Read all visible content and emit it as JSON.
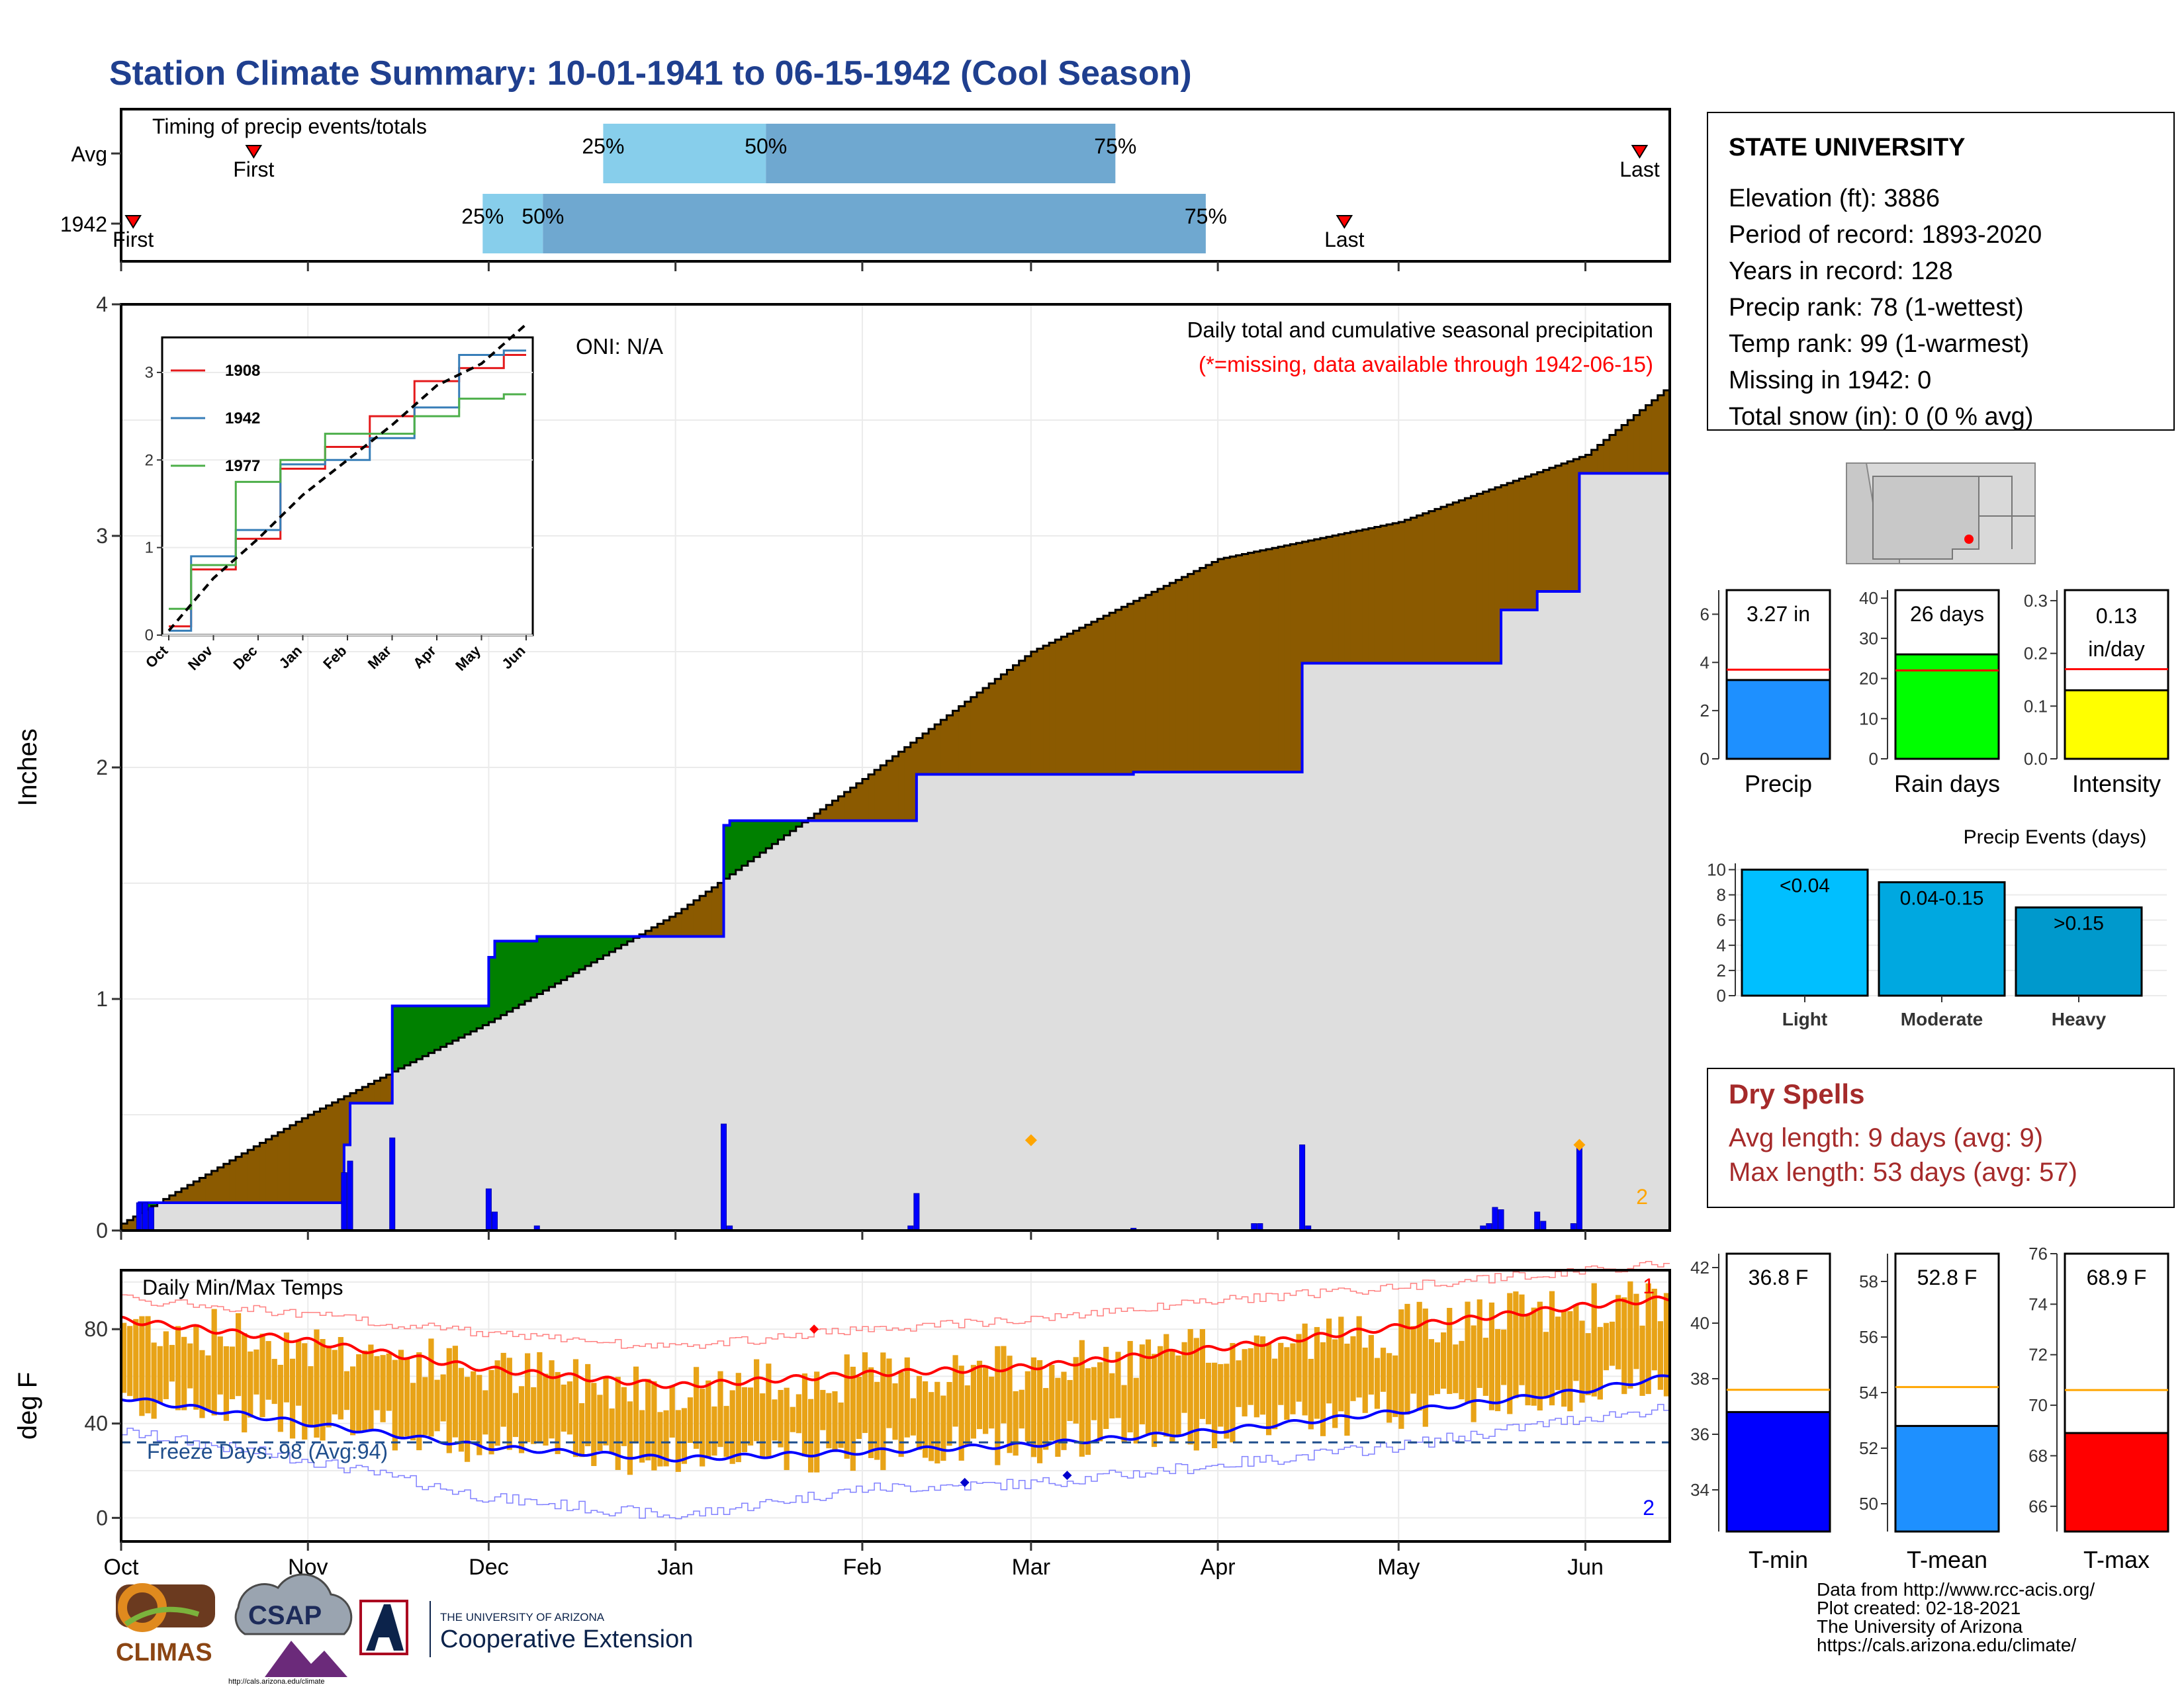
{
  "page_title": "Station Climate Summary: 10-01-1941 to 06-15-1942 (Cool Season)",
  "timing_panel": {
    "title": "Timing of precip events/totals",
    "rows": [
      {
        "label": "Avg",
        "first": "First",
        "last": "Last",
        "first_date": "1941-10-23",
        "q25": "25%",
        "q50": "50%",
        "q75": "75%",
        "q25_date": "1941-12-20",
        "q50_date": "1942-01-16",
        "q75_date": "1942-03-15",
        "last_date": "1942-06-10"
      },
      {
        "label": "1942",
        "first": "First",
        "last": "Last",
        "first_date": "1941-10-03",
        "q25": "25%",
        "q50": "50%",
        "q75": "75%",
        "q25_date": "1941-11-30",
        "q50_date": "1941-12-10",
        "q75_date": "1942-03-30",
        "last_date": "1942-04-22"
      }
    ]
  },
  "station_info": {
    "name": "STATE UNIVERSITY",
    "lines": [
      "Elevation (ft): 3886",
      "Period of record: 1893-2020",
      "Years in record: 128",
      "Precip rank: 78 (1-wettest)",
      "Temp rank: 99 (1-warmest)",
      "Missing in 1942: 0",
      "Total snow (in): 0 (0 % avg)"
    ]
  },
  "precip_panel": {
    "ylabel": "Inches",
    "annotation": "Daily total and cumulative seasonal precipitation",
    "missing_note": "(*=missing, data available through 1942-06-15)",
    "oni": "ONI: N/A",
    "corner_count": "2",
    "colors": {
      "observed": "#0000ff",
      "above": "#008000",
      "below": "#8b5a00",
      "fill": "#dedede",
      "marker": "#ffa500"
    }
  },
  "temp_panel": {
    "ylabel": "deg F",
    "title": "Daily Min/Max Temps",
    "freeze_days": "Freeze Days: 98 (Avg:94)",
    "record_high_count": "1",
    "record_low_count": "2",
    "colors": {
      "bars": "#e8a317",
      "avg_max": "#ff0000",
      "avg_min": "#0000ff",
      "freeze": "#1f4e8c"
    }
  },
  "x_months": [
    "Oct",
    "Nov",
    "Dec",
    "Jan",
    "Feb",
    "Mar",
    "Apr",
    "May",
    "Jun"
  ],
  "inset_months": [
    "Oct",
    "Nov",
    "Dec",
    "Jan",
    "Feb",
    "Mar",
    "Apr",
    "May",
    "Jun"
  ],
  "mini_bars": [
    {
      "label": "Precip",
      "value_text": "3.27 in",
      "value": 3.27,
      "avg": 3.7,
      "color": "#1e90ff",
      "ylim": [
        0,
        7
      ],
      "ticks": [
        0,
        2,
        4,
        6
      ]
    },
    {
      "label": "Rain days",
      "value_text": "26 days",
      "value": 26,
      "avg": 22,
      "color": "#00ff00",
      "ylim": [
        0,
        42
      ],
      "ticks": [
        0,
        10,
        20,
        30,
        40
      ]
    },
    {
      "label": "Intensity",
      "value_text": "0.13 in/day",
      "value_line1": "0.13",
      "value_line2": "in/day",
      "value": 0.13,
      "avg": 0.17,
      "color": "#ffff00",
      "ylim": [
        0,
        0.32
      ],
      "ticks": [
        "0.0",
        "0.1",
        "0.2",
        "0.3"
      ]
    }
  ],
  "precip_events": {
    "title": "Precip Events (days)",
    "ticks": [
      0,
      2,
      4,
      6,
      8,
      10
    ],
    "bars": [
      {
        "category": "Light",
        "label": "<0.04",
        "value": 10,
        "color": "#00bfff"
      },
      {
        "category": "Moderate",
        "label": "0.04-0.15",
        "value": 9,
        "color": "#00a8e0"
      },
      {
        "category": "Heavy",
        "label": ">0.15",
        "value": 7,
        "color": "#0099cc"
      }
    ]
  },
  "dry_spells": {
    "title": "Dry Spells",
    "avg": "Avg length: 9 days (avg: 9)",
    "max": "Max length: 53 days (avg: 57)"
  },
  "temp_bars": [
    {
      "label": "T-min",
      "value_text": "36.8 F",
      "value": 36.8,
      "avg": 37.6,
      "color": "#0000ff",
      "ylim": [
        32.5,
        42.5
      ],
      "ticks": [
        34,
        36,
        38,
        40,
        42
      ]
    },
    {
      "label": "T-mean",
      "value_text": "52.8 F",
      "value": 52.8,
      "avg": 54.2,
      "color": "#1e90ff",
      "ylim": [
        49,
        59
      ],
      "ticks": [
        50,
        52,
        54,
        56,
        58
      ]
    },
    {
      "label": "T-max",
      "value_text": "68.9 F",
      "value": 68.9,
      "avg": 70.6,
      "color": "#ff0000",
      "ylim": [
        65,
        76
      ],
      "ticks": [
        66,
        68,
        70,
        72,
        74,
        76
      ]
    }
  ],
  "footer": {
    "lines": [
      "Data from http://www.rcc-acis.org/",
      "Plot created: 02-18-2021",
      "The University of Arizona",
      "https://cals.arizona.edu/climate/"
    ]
  },
  "logos": {
    "climas": "CLIMAS",
    "csap": "CSAP",
    "csap_url": "http://cals.arizona.edu/climate",
    "ua_small": "THE UNIVERSITY OF ARIZONA",
    "ua_large": "Cooperative Extension"
  },
  "chart_data": [
    {
      "type": "area",
      "title": "Daily total and cumulative seasonal precipitation",
      "ylabel": "Inches",
      "ylim": [
        0,
        4
      ],
      "x_range": [
        "1941-10-01",
        "1942-06-15"
      ],
      "daily_precip": [
        [
          "1941-10-04",
          0.12
        ],
        [
          "1941-10-05",
          0.12
        ],
        [
          "1941-10-06",
          0.1
        ],
        [
          "1941-11-07",
          0.25
        ],
        [
          "1941-11-08",
          0.3
        ],
        [
          "1941-11-15",
          0.4
        ],
        [
          "1941-12-01",
          0.18
        ],
        [
          "1941-12-02",
          0.08
        ],
        [
          "1941-12-09",
          0.02
        ],
        [
          "1942-01-09",
          0.46
        ],
        [
          "1942-01-10",
          0.02
        ],
        [
          "1942-02-09",
          0.02
        ],
        [
          "1942-02-10",
          0.16
        ],
        [
          "1942-03-18",
          0.01
        ],
        [
          "1942-04-07",
          0.03
        ],
        [
          "1942-04-08",
          0.03
        ],
        [
          "1942-04-15",
          0.37
        ],
        [
          "1942-04-16",
          0.02
        ],
        [
          "1942-05-15",
          0.02
        ],
        [
          "1942-05-16",
          0.03
        ],
        [
          "1942-05-17",
          0.1
        ],
        [
          "1942-05-18",
          0.09
        ],
        [
          "1942-05-24",
          0.08
        ],
        [
          "1942-05-25",
          0.04
        ],
        [
          "1942-05-30",
          0.03
        ],
        [
          "1942-05-31",
          0.37
        ]
      ],
      "cumulative_observed": [
        [
          "1941-10-01",
          0.0
        ],
        [
          "1941-10-04",
          0.12
        ],
        [
          "1941-11-07",
          0.37
        ],
        [
          "1941-11-08",
          0.55
        ],
        [
          "1941-11-15",
          0.97
        ],
        [
          "1941-12-01",
          1.18
        ],
        [
          "1941-12-02",
          1.25
        ],
        [
          "1941-12-09",
          1.27
        ],
        [
          "1942-01-09",
          1.75
        ],
        [
          "1942-01-10",
          1.77
        ],
        [
          "1942-02-10",
          1.97
        ],
        [
          "1942-03-18",
          1.98
        ],
        [
          "1942-04-15",
          2.45
        ],
        [
          "1942-05-15",
          2.45
        ],
        [
          "1942-05-18",
          2.68
        ],
        [
          "1942-05-24",
          2.76
        ],
        [
          "1942-05-31",
          3.27
        ],
        [
          "1942-06-15",
          3.27
        ]
      ],
      "cumulative_average": [
        [
          "1941-10-01",
          0.03
        ],
        [
          "1941-11-01",
          0.5
        ],
        [
          "1941-12-01",
          0.9
        ],
        [
          "1942-01-01",
          1.37
        ],
        [
          "1942-02-01",
          1.95
        ],
        [
          "1942-03-01",
          2.5
        ],
        [
          "1942-04-01",
          2.9
        ],
        [
          "1942-05-01",
          3.06
        ],
        [
          "1942-06-01",
          3.35
        ],
        [
          "1942-06-15",
          3.65
        ]
      ],
      "extreme_markers": [
        [
          "1942-03-01",
          0.39
        ],
        [
          "1942-05-31",
          0.37
        ]
      ]
    },
    {
      "type": "line",
      "title": "",
      "ylim": [
        0,
        3.4
      ],
      "x_labels": [
        "Oct",
        "Nov",
        "Dec",
        "Jan",
        "Feb",
        "Mar",
        "Apr",
        "May",
        "Jun"
      ],
      "series": [
        {
          "name": "1908",
          "color": "#e41a1c",
          "values": [
            0.1,
            0.75,
            1.1,
            1.9,
            2.15,
            2.5,
            2.9,
            3.05,
            3.2
          ]
        },
        {
          "name": "1942",
          "color": "#377eb8",
          "values": [
            0.05,
            0.9,
            1.2,
            1.95,
            2.0,
            2.25,
            2.6,
            3.2,
            3.25
          ]
        },
        {
          "name": "1977",
          "color": "#4daf4a",
          "values": [
            0.3,
            0.8,
            1.75,
            2.0,
            2.3,
            2.3,
            2.5,
            2.7,
            2.75
          ]
        },
        {
          "name": "",
          "color": "#000000",
          "values": [
            0.05,
            0.65,
            1.1,
            1.6,
            2.0,
            2.4,
            2.85,
            3.1,
            3.55
          ]
        }
      ]
    },
    {
      "type": "bar",
      "title": "Daily Min/Max Temps",
      "ylabel": "deg F",
      "ylim": [
        -10,
        105
      ],
      "x_range": [
        "1941-10-01",
        "1942-06-15"
      ],
      "avg_max": [
        [
          "1941-10-01",
          84
        ],
        [
          "1941-11-01",
          75
        ],
        [
          "1941-12-01",
          63
        ],
        [
          "1942-01-01",
          56
        ],
        [
          "1942-02-01",
          61
        ],
        [
          "1942-03-01",
          64
        ],
        [
          "1942-04-01",
          72
        ],
        [
          "1942-05-01",
          81
        ],
        [
          "1942-06-01",
          90
        ],
        [
          "1942-06-15",
          93
        ]
      ],
      "avg_min": [
        [
          "1941-10-01",
          51
        ],
        [
          "1941-11-01",
          40
        ],
        [
          "1941-12-01",
          30
        ],
        [
          "1942-01-01",
          25
        ],
        [
          "1942-02-01",
          28
        ],
        [
          "1942-03-01",
          31
        ],
        [
          "1942-04-01",
          37
        ],
        [
          "1942-05-01",
          45
        ],
        [
          "1942-06-01",
          54
        ],
        [
          "1942-06-15",
          60
        ]
      ],
      "record_high": [
        [
          "1941-10-01",
          95
        ],
        [
          "1941-11-01",
          88
        ],
        [
          "1941-12-01",
          80
        ],
        [
          "1942-01-01",
          74
        ],
        [
          "1942-02-01",
          82
        ],
        [
          "1942-03-01",
          86
        ],
        [
          "1942-04-01",
          94
        ],
        [
          "1942-05-01",
          100
        ],
        [
          "1942-06-01",
          107
        ],
        [
          "1942-06-15",
          110
        ]
      ],
      "record_low": [
        [
          "1941-10-01",
          34
        ],
        [
          "1941-11-01",
          22
        ],
        [
          "1941-12-01",
          6
        ],
        [
          "1942-01-01",
          -2
        ],
        [
          "1942-02-01",
          10
        ],
        [
          "1942-03-01",
          12
        ],
        [
          "1942-04-01",
          20
        ],
        [
          "1942-05-01",
          28
        ],
        [
          "1942-06-01",
          40
        ],
        [
          "1942-06-15",
          44
        ]
      ],
      "freeze_line": 32,
      "record_markers": [
        [
          "1942-01-24",
          80,
          "high"
        ],
        [
          "1942-02-18",
          15,
          "low"
        ],
        [
          "1942-03-07",
          18,
          "low"
        ]
      ]
    }
  ]
}
